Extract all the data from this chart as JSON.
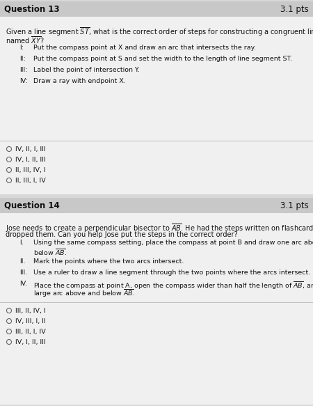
{
  "bg_color": "#d8d8d8",
  "q13_header_color": "#c8c8c8",
  "q14_header_color": "#c8c8c8",
  "body_color": "#f0f0f0",
  "separator_color": "#c0c0c0",
  "text_color": "#111111",
  "radio_color": "#666666",
  "q13_number": "Question 13",
  "q13_pts": "3.1 pts",
  "q13_prompt_line1": "Given a line segment $\\overline{ST}$, what is the correct order of steps for constructing a congruent line segment",
  "q13_prompt_line2": "named $\\overline{XY}$?",
  "q13_step_romans": [
    "I:",
    "II:",
    "III:",
    "IV:"
  ],
  "q13_step_texts": [
    "Put the compass point at X and draw an arc that intersects the ray.",
    "Put the compass point at S and set the width to the length of line segment ST.",
    "Label the point of intersection Y.",
    "Draw a ray with endpoint X."
  ],
  "q13_options": [
    "IV, II, I, III",
    "IV, I, II, III",
    "II, III, IV, I",
    "II, III, I, IV"
  ],
  "q14_number": "Question 14",
  "q14_pts": "3.1 pts",
  "q14_prompt_line1": "Jose needs to create a perpendicular bisector to $\\overline{AB}$. He had the steps written on flashcards, but he",
  "q14_prompt_line2": "dropped them. Can you help Jose put the steps in the correct order?",
  "q14_step_romans": [
    "I.",
    "II.",
    "III.",
    "IV."
  ],
  "q14_step_lines": [
    [
      "Using the same compass setting, place the compass at point B and draw one arc above and one",
      "below $\\overline{AB}$."
    ],
    [
      "Mark the points where the two arcs intersect."
    ],
    [
      "Use a ruler to draw a line segment through the two points where the arcs intersect."
    ],
    [
      "Place the compass at point A, open the compass wider than half the length of $\\overline{AB}$, and draw a",
      "large arc above and below $\\overline{AB}$."
    ]
  ],
  "q14_options": [
    "III, II, IV, I",
    "IV, III, I, II",
    "III, II, I, IV",
    "IV, I, II, III"
  ],
  "fs_header": 8.5,
  "fs_prompt": 7.0,
  "fs_step": 6.8,
  "fs_option": 6.8
}
